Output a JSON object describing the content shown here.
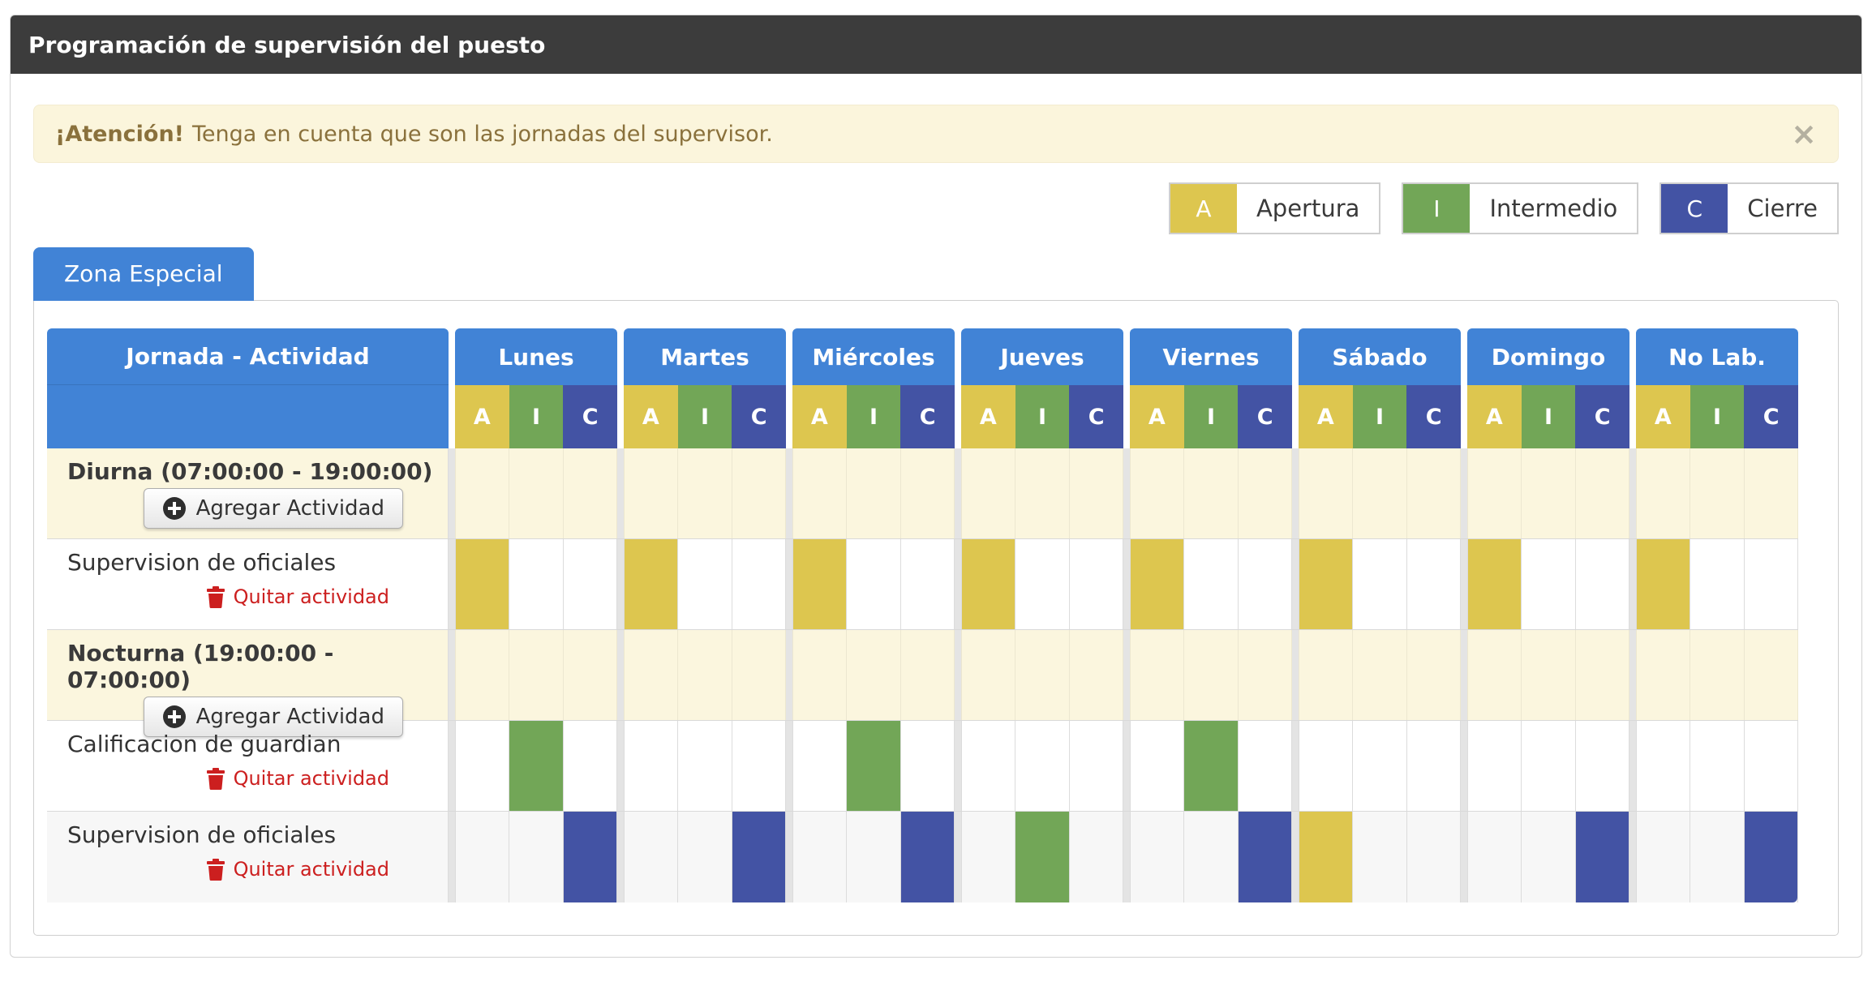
{
  "title": "Programación de supervisión del puesto",
  "alert": {
    "bold": "¡Atención!",
    "text": "Tenga en cuenta que son las jornadas del supervisor.",
    "close_glyph": "×"
  },
  "legend": [
    {
      "letter": "A",
      "label": "Apertura",
      "color": "#ddc64f"
    },
    {
      "letter": "I",
      "label": "Intermedio",
      "color": "#72a657"
    },
    {
      "letter": "C",
      "label": "Cierre",
      "color": "#4353a4"
    }
  ],
  "tab": {
    "label": "Zona Especial"
  },
  "colors": {
    "title_bar": "#3c3c3c",
    "header_blue": "#4183d6",
    "apertura": "#ddc64f",
    "intermedio": "#72a657",
    "cierre": "#4353a4",
    "jornada_row_bg": "#fbf6de",
    "alert_bg": "#fbf5dc",
    "alert_text": "#8a713c",
    "remove_red": "#cc1f1f"
  },
  "table": {
    "corner_header": "Jornada - Actividad",
    "days": [
      "Lunes",
      "Martes",
      "Miércoles",
      "Jueves",
      "Viernes",
      "Sábado",
      "Domingo",
      "No Lab."
    ],
    "slots": [
      "A",
      "I",
      "C"
    ],
    "rows": [
      {
        "type": "jornada",
        "label": "Diurna (07:00:00 - 19:00:00)",
        "button_label": "Agregar Actividad"
      },
      {
        "type": "activity",
        "label": "Supervision de oficiales",
        "remove_label": "Quitar actividad",
        "cells": [
          "A",
          "A",
          "A",
          "A",
          "A",
          "A",
          "A",
          "A"
        ]
      },
      {
        "type": "jornada",
        "label": "Nocturna (19:00:00 - 07:00:00)",
        "button_label": "Agregar Actividad"
      },
      {
        "type": "activity",
        "label": "Calificacion de guardian",
        "remove_label": "Quitar actividad",
        "cells": [
          "I",
          "",
          "I",
          "",
          "I",
          "",
          "",
          ""
        ]
      },
      {
        "type": "activity",
        "label": "Supervision de oficiales",
        "remove_label": "Quitar actividad",
        "shaded": true,
        "cells": [
          "C",
          "C",
          "C",
          "I",
          "C",
          "A",
          "C",
          "C"
        ]
      }
    ]
  }
}
